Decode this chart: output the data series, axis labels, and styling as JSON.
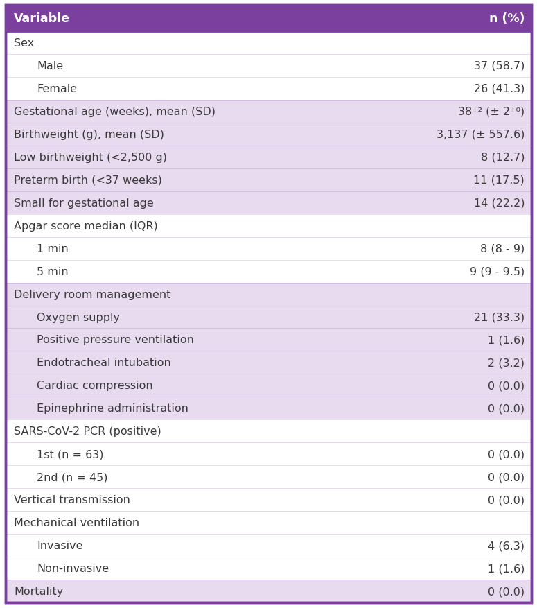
{
  "header": [
    "Variable",
    "n (%)"
  ],
  "header_bg": "#7B3F9E",
  "header_text_color": "#FFFFFF",
  "header_fontsize": 12.5,
  "body_fontsize": 11.5,
  "purple_bg": "#E8DAEF",
  "white_bg": "#FFFFFF",
  "text_color": "#3A3A3A",
  "border_color": "#7B3F9E",
  "rows": [
    {
      "label": "Sex",
      "value": "",
      "indent": 0,
      "bg": "white"
    },
    {
      "label": "Male",
      "value": "37 (58.7)",
      "indent": 2,
      "bg": "white"
    },
    {
      "label": "Female",
      "value": "26 (41.3)",
      "indent": 2,
      "bg": "white"
    },
    {
      "label": "Gestational age (weeks), mean (SD)",
      "value": "38⁺² (± 2⁺⁰)",
      "indent": 0,
      "bg": "purple"
    },
    {
      "label": "Birthweight (g), mean (SD)",
      "value": "3,137 (± 557.6)",
      "indent": 0,
      "bg": "purple"
    },
    {
      "label": "Low birthweight (<2,500 g)",
      "value": "8 (12.7)",
      "indent": 0,
      "bg": "purple"
    },
    {
      "label": "Preterm birth (<37 weeks)",
      "value": "11 (17.5)",
      "indent": 0,
      "bg": "purple"
    },
    {
      "label": "Small for gestational age",
      "value": "14 (22.2)",
      "indent": 0,
      "bg": "purple"
    },
    {
      "label": "Apgar score median (IQR)",
      "value": "",
      "indent": 0,
      "bg": "white"
    },
    {
      "label": "1 min",
      "value": "8 (8 - 9)",
      "indent": 2,
      "bg": "white"
    },
    {
      "label": "5 min",
      "value": "9 (9 - 9.5)",
      "indent": 2,
      "bg": "white"
    },
    {
      "label": "Delivery room management",
      "value": "",
      "indent": 0,
      "bg": "purple"
    },
    {
      "label": "Oxygen supply",
      "value": "21 (33.3)",
      "indent": 2,
      "bg": "purple"
    },
    {
      "label": "Positive pressure ventilation",
      "value": "1 (1.6)",
      "indent": 2,
      "bg": "purple"
    },
    {
      "label": "Endotracheal intubation",
      "value": "2 (3.2)",
      "indent": 2,
      "bg": "purple"
    },
    {
      "label": "Cardiac compression",
      "value": "0 (0.0)",
      "indent": 2,
      "bg": "purple"
    },
    {
      "label": "Epinephrine administration",
      "value": "0 (0.0)",
      "indent": 2,
      "bg": "purple"
    },
    {
      "label": "SARS-CoV-2 PCR (positive)",
      "value": "",
      "indent": 0,
      "bg": "white"
    },
    {
      "label": "1st (n = 63)",
      "value": "0 (0.0)",
      "indent": 2,
      "bg": "white"
    },
    {
      "label": "2nd (n = 45)",
      "value": "0 (0.0)",
      "indent": 2,
      "bg": "white"
    },
    {
      "label": "Vertical transmission",
      "value": "0 (0.0)",
      "indent": 0,
      "bg": "white"
    },
    {
      "label": "Mechanical ventilation",
      "value": "",
      "indent": 0,
      "bg": "white"
    },
    {
      "label": "Invasive",
      "value": "4 (6.3)",
      "indent": 2,
      "bg": "white"
    },
    {
      "label": "Non-invasive",
      "value": "1 (1.6)",
      "indent": 2,
      "bg": "white"
    },
    {
      "label": "Mortality",
      "value": "0 (0.0)",
      "indent": 0,
      "bg": "purple"
    }
  ]
}
